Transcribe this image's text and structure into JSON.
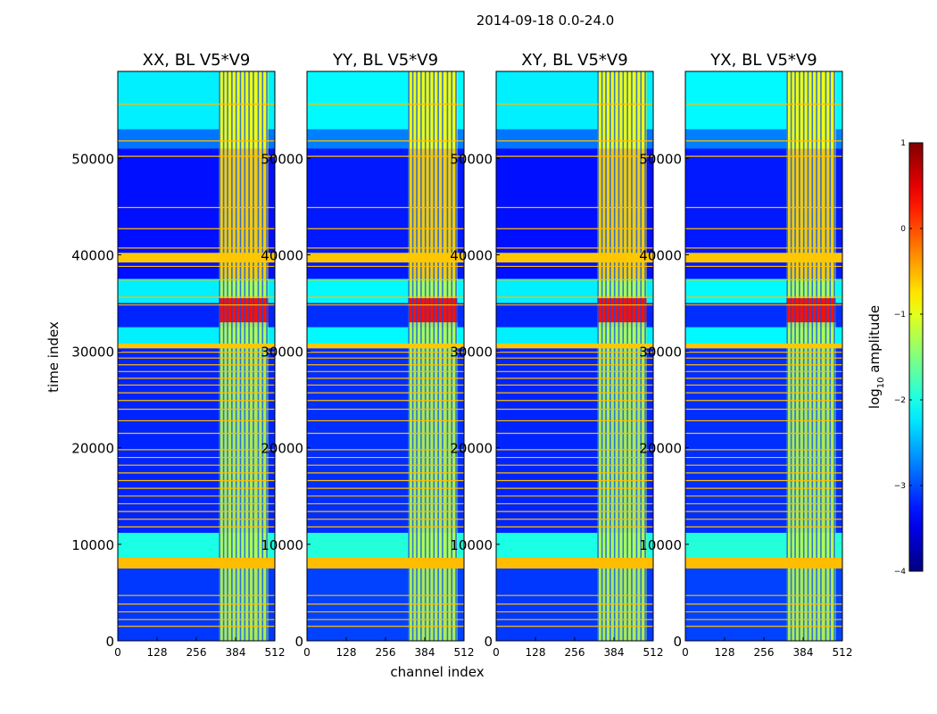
{
  "figure_title": "2014-09-18 0.0-24.0",
  "chart_data": {
    "type": "heatmap",
    "title": "2014-09-18 0.0-24.0",
    "xlabel": "channel index",
    "ylabel": "time index",
    "xlim": [
      0,
      512
    ],
    "ylim": [
      0,
      59000
    ],
    "xticks": [
      0,
      128,
      256,
      384,
      512
    ],
    "yticks": [
      0,
      10000,
      20000,
      30000,
      40000,
      50000
    ],
    "panels": [
      {
        "name": "XX",
        "title": "XX, BL V5*V9"
      },
      {
        "name": "YY",
        "title": "YY, BL V5*V9"
      },
      {
        "name": "XY",
        "title": "XY, BL V5*V9"
      },
      {
        "name": "YX",
        "title": "YX, BL V5*V9"
      }
    ],
    "colorbar": {
      "label": "log10 amplitude",
      "label_base": "log",
      "label_sub": "10",
      "label_rest": " amplitude",
      "range": [
        -4,
        1
      ],
      "ticks": [
        1,
        0,
        -1,
        -2,
        -3,
        -4
      ],
      "tick_labels": [
        "1",
        "0",
        "−1",
        "−2",
        "−3",
        "−4"
      ],
      "colormap": "jet"
    },
    "bands": [
      {
        "t0": 0,
        "t1": 7500,
        "level": -3.1
      },
      {
        "t0": 7500,
        "t1": 8600,
        "level": -0.5
      },
      {
        "t0": 8600,
        "t1": 11200,
        "level": -2.0
      },
      {
        "t0": 11200,
        "t1": 30500,
        "level": -3.2
      },
      {
        "t0": 30500,
        "t1": 32500,
        "level": -2.2
      },
      {
        "t0": 32500,
        "t1": 35000,
        "level": -3.2
      },
      {
        "t0": 35000,
        "t1": 37500,
        "level": -2.2
      },
      {
        "t0": 37500,
        "t1": 51000,
        "level": -3.3
      },
      {
        "t0": 51000,
        "t1": 53000,
        "level": -2.8
      },
      {
        "t0": 53000,
        "t1": 59000,
        "level": -2.2
      }
    ],
    "flag_rows": [
      1500,
      2200,
      3000,
      3800,
      4700,
      11800,
      12600,
      13400,
      14200,
      15000,
      15800,
      16600,
      17400,
      18200,
      19000,
      19800,
      21500,
      22800,
      24000,
      24900,
      25700,
      26500,
      27200,
      27900,
      28600,
      29300,
      29900,
      30400,
      34800,
      35600,
      37400,
      38800,
      39400,
      40000,
      40700,
      42700,
      44900,
      50200,
      51800,
      55600
    ],
    "flag_blocks": [
      {
        "t0": 7500,
        "t1": 8600,
        "level": -0.55
      },
      {
        "t0": 39200,
        "t1": 40200,
        "level": -0.6
      },
      {
        "t0": 30300,
        "t1": 30800,
        "level": -0.6
      }
    ],
    "flag_level": -0.55,
    "rfi_channels": [
      332,
      345,
      358,
      372,
      386,
      400,
      414,
      428,
      442,
      458,
      472,
      486
    ],
    "rfi_band": {
      "c0": 330,
      "c1": 490,
      "level": -1.2,
      "peak_t0": 33000,
      "peak_t1": 35500,
      "peak_level": 0.3
    }
  }
}
